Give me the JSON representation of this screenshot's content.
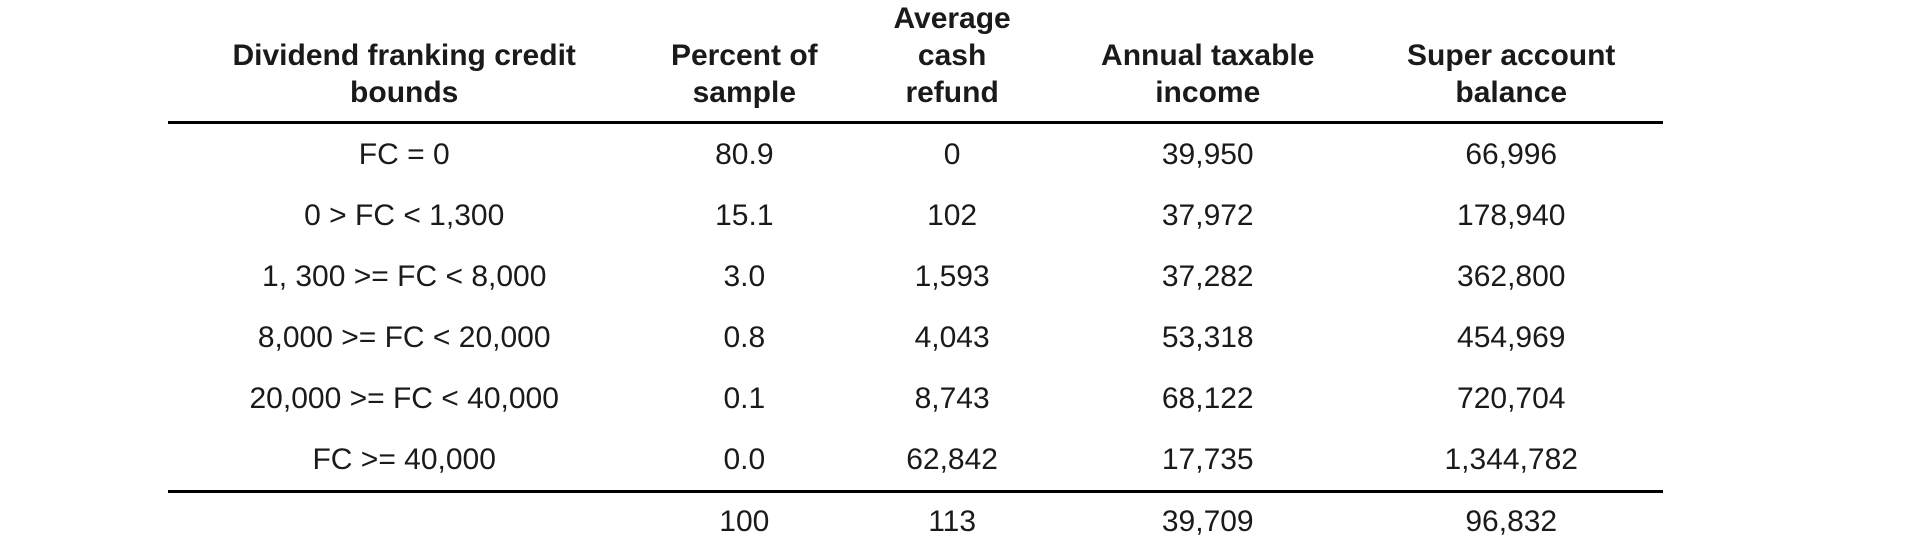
{
  "table": {
    "title_semantic": "dividend-franking-credit-summary-table",
    "rule_color": "#000000",
    "text_color": "#1a1a1a",
    "columns": [
      {
        "label": "Dividend franking credit\nbounds"
      },
      {
        "label": "Percent of\nsample"
      },
      {
        "label": "Average\ncash\nrefund"
      },
      {
        "label": "Annual taxable\nincome"
      },
      {
        "label": "Super account\nbalance"
      }
    ],
    "rows": [
      [
        "FC = 0",
        "80.9",
        "0",
        "39,950",
        "66,996"
      ],
      [
        "0 > FC < 1,300",
        "15.1",
        "102",
        "37,972",
        "178,940"
      ],
      [
        "1, 300 >= FC < 8,000",
        "3.0",
        "1,593",
        "37,282",
        "362,800"
      ],
      [
        "8,000 >= FC < 20,000",
        "0.8",
        "4,043",
        "53,318",
        "454,969"
      ],
      [
        "20,000 >= FC < 40,000",
        "0.1",
        "8,743",
        "68,122",
        "720,704"
      ],
      [
        "FC >= 40,000",
        "0.0",
        "62,842",
        "17,735",
        "1,344,782"
      ]
    ],
    "total_row": [
      "",
      "100",
      "113",
      "39,709",
      "96,832"
    ]
  }
}
